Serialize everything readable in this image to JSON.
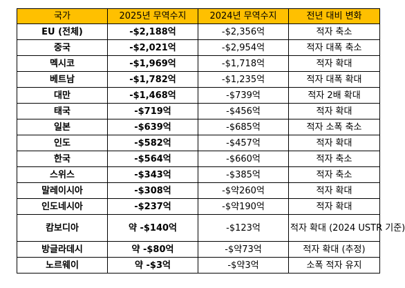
{
  "table": {
    "headers": [
      "국가",
      "2025년 무역수지",
      "2024년 무역수지",
      "전년 대비 변화"
    ],
    "rows": [
      {
        "country": "EU (전체)",
        "v2025": "-$2,188억",
        "v2024": "-$2,356억",
        "change": "적자 축소"
      },
      {
        "country": "중국",
        "v2025": "-$2,021억",
        "v2024": "-$2,954억",
        "change": "적자 대폭 축소"
      },
      {
        "country": "멕시코",
        "v2025": "-$1,969억",
        "v2024": "-$1,718억",
        "change": "적자 확대"
      },
      {
        "country": "베트남",
        "v2025": "-$1,782억",
        "v2024": "-$1,235억",
        "change": "적자 대폭 확대"
      },
      {
        "country": "대만",
        "v2025": "-$1,468억",
        "v2024": "-$739억",
        "change": "적자 2배 확대"
      },
      {
        "country": "태국",
        "v2025": "-$719억",
        "v2024": "-$456억",
        "change": "적자 확대"
      },
      {
        "country": "일본",
        "v2025": "-$639억",
        "v2024": "-$685억",
        "change": "적자 소폭 축소"
      },
      {
        "country": "인도",
        "v2025": "-$582억",
        "v2024": "-$457억",
        "change": "적자 확대"
      },
      {
        "country": "한국",
        "v2025": "-$564억",
        "v2024": "-$660억",
        "change": "적자 축소"
      },
      {
        "country": "스위스",
        "v2025": "-$343억",
        "v2024": "-$385억",
        "change": "적자 축소"
      },
      {
        "country": "말레이시아",
        "v2025": "-$308억",
        "v2024": "-$약260억",
        "change": "적자 확대"
      },
      {
        "country": "인도네시아",
        "v2025": "-$237억",
        "v2024": "-$약190억",
        "change": "적자 확대"
      },
      {
        "country": "캄보디아",
        "v2025": "약 -$140억",
        "v2024": "-$123억",
        "change": "적자 확대 (2024 USTR 기준)"
      },
      {
        "country": "방글라데시",
        "v2025": "약 -$80억",
        "v2024": "-$약73억",
        "change": "적자 확대 (추정)"
      },
      {
        "country": "노르웨이",
        "v2025": "약 -$3억",
        "v2024": "-$약3억",
        "change": "소폭 적자 유지"
      }
    ]
  }
}
